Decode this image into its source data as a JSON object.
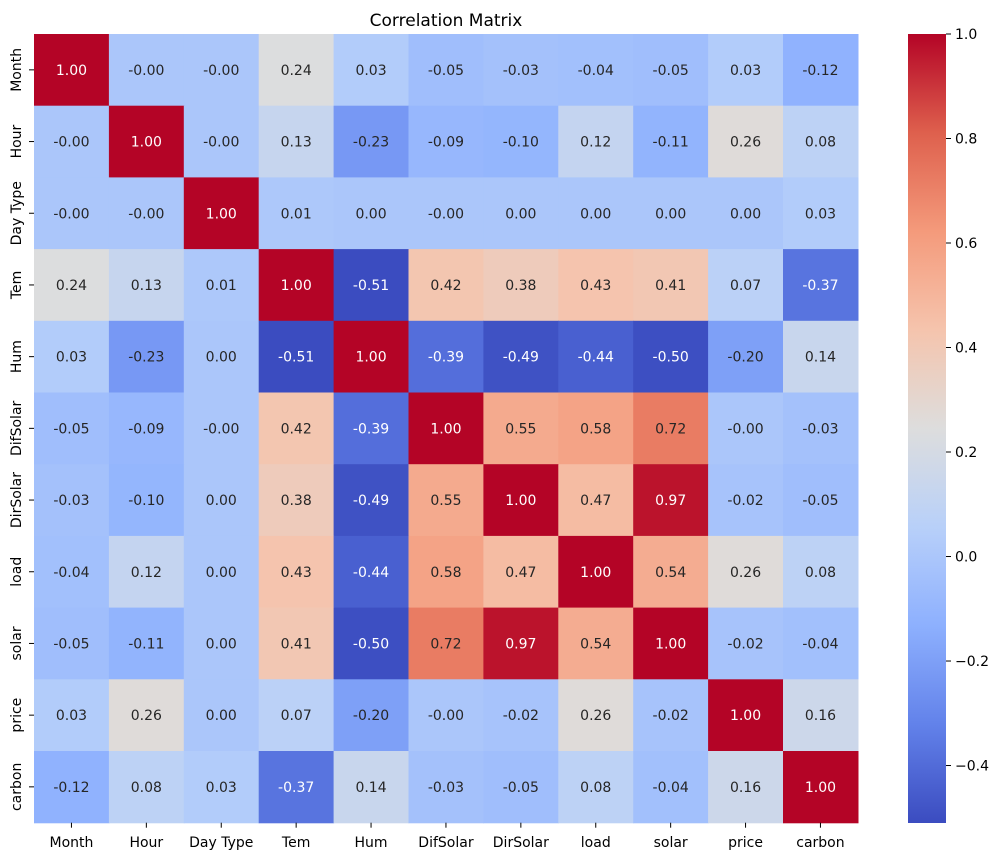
{
  "chart_data": {
    "type": "heatmap",
    "title": "Correlation Matrix",
    "xlabel": "",
    "ylabel": "",
    "labels": [
      "Month",
      "Hour",
      "Day Type",
      "Tem",
      "Hum",
      "DifSolar",
      "DirSolar",
      "load",
      "solar",
      "price",
      "carbon"
    ],
    "matrix": [
      [
        1.0,
        -0.0,
        -0.0,
        0.24,
        0.03,
        -0.05,
        -0.03,
        -0.04,
        -0.05,
        0.03,
        -0.12
      ],
      [
        -0.0,
        1.0,
        -0.0,
        0.13,
        -0.23,
        -0.09,
        -0.1,
        0.12,
        -0.11,
        0.26,
        0.08
      ],
      [
        -0.0,
        -0.0,
        1.0,
        0.01,
        0.0,
        -0.0,
        0.0,
        0.0,
        0.0,
        0.0,
        0.03
      ],
      [
        0.24,
        0.13,
        0.01,
        1.0,
        -0.51,
        0.42,
        0.38,
        0.43,
        0.41,
        0.07,
        -0.37
      ],
      [
        0.03,
        -0.23,
        0.0,
        -0.51,
        1.0,
        -0.39,
        -0.49,
        -0.44,
        -0.5,
        -0.2,
        0.14
      ],
      [
        -0.05,
        -0.09,
        -0.0,
        0.42,
        -0.39,
        1.0,
        0.55,
        0.58,
        0.72,
        -0.0,
        -0.03
      ],
      [
        -0.03,
        -0.1,
        0.0,
        0.38,
        -0.49,
        0.55,
        1.0,
        0.47,
        0.97,
        -0.02,
        -0.05
      ],
      [
        -0.04,
        0.12,
        0.0,
        0.43,
        -0.44,
        0.58,
        0.47,
        1.0,
        0.54,
        0.26,
        0.08
      ],
      [
        -0.05,
        -0.11,
        0.0,
        0.41,
        -0.5,
        0.72,
        0.97,
        0.54,
        1.0,
        -0.02,
        -0.04
      ],
      [
        0.03,
        0.26,
        0.0,
        0.07,
        -0.2,
        -0.0,
        -0.02,
        0.26,
        -0.02,
        1.0,
        0.16
      ],
      [
        -0.12,
        0.08,
        0.03,
        -0.37,
        0.14,
        -0.03,
        -0.05,
        0.08,
        -0.04,
        0.16,
        1.0
      ]
    ],
    "cell_labels": [
      [
        "1.00",
        "-0.00",
        "-0.00",
        "0.24",
        "0.03",
        "-0.05",
        "-0.03",
        "-0.04",
        "-0.05",
        "0.03",
        "-0.12"
      ],
      [
        "-0.00",
        "1.00",
        "-0.00",
        "0.13",
        "-0.23",
        "-0.09",
        "-0.10",
        "0.12",
        "-0.11",
        "0.26",
        "0.08"
      ],
      [
        "-0.00",
        "-0.00",
        "1.00",
        "0.01",
        "0.00",
        "-0.00",
        "0.00",
        "0.00",
        "0.00",
        "0.00",
        "0.03"
      ],
      [
        "0.24",
        "0.13",
        "0.01",
        "1.00",
        "-0.51",
        "0.42",
        "0.38",
        "0.43",
        "0.41",
        "0.07",
        "-0.37"
      ],
      [
        "0.03",
        "-0.23",
        "0.00",
        "-0.51",
        "1.00",
        "-0.39",
        "-0.49",
        "-0.44",
        "-0.50",
        "-0.20",
        "0.14"
      ],
      [
        "-0.05",
        "-0.09",
        "-0.00",
        "0.42",
        "-0.39",
        "1.00",
        "0.55",
        "0.58",
        "0.72",
        "-0.00",
        "-0.03"
      ],
      [
        "-0.03",
        "-0.10",
        "0.00",
        "0.38",
        "-0.49",
        "0.55",
        "1.00",
        "0.47",
        "0.97",
        "-0.02",
        "-0.05"
      ],
      [
        "-0.04",
        "0.12",
        "0.00",
        "0.43",
        "-0.44",
        "0.58",
        "0.47",
        "1.00",
        "0.54",
        "0.26",
        "0.08"
      ],
      [
        "-0.05",
        "-0.11",
        "0.00",
        "0.41",
        "-0.50",
        "0.72",
        "0.97",
        "0.54",
        "1.00",
        "-0.02",
        "-0.04"
      ],
      [
        "0.03",
        "0.26",
        "0.00",
        "0.07",
        "-0.20",
        "-0.00",
        "-0.02",
        "0.26",
        "-0.02",
        "1.00",
        "0.16"
      ],
      [
        "-0.12",
        "0.08",
        "0.03",
        "-0.37",
        "0.14",
        "-0.03",
        "-0.05",
        "0.08",
        "-0.04",
        "0.16",
        "1.00"
      ]
    ],
    "colormap": "coolwarm",
    "vmin": -0.51,
    "vmax": 1.0,
    "colorbar_ticks": [
      1.0,
      0.8,
      0.6,
      0.4,
      0.2,
      0.0,
      -0.2,
      -0.4
    ],
    "colorbar_tick_labels": [
      "1.0",
      "0.8",
      "0.6",
      "0.4",
      "0.2",
      "0.0",
      "−0.2",
      "−0.4"
    ]
  }
}
